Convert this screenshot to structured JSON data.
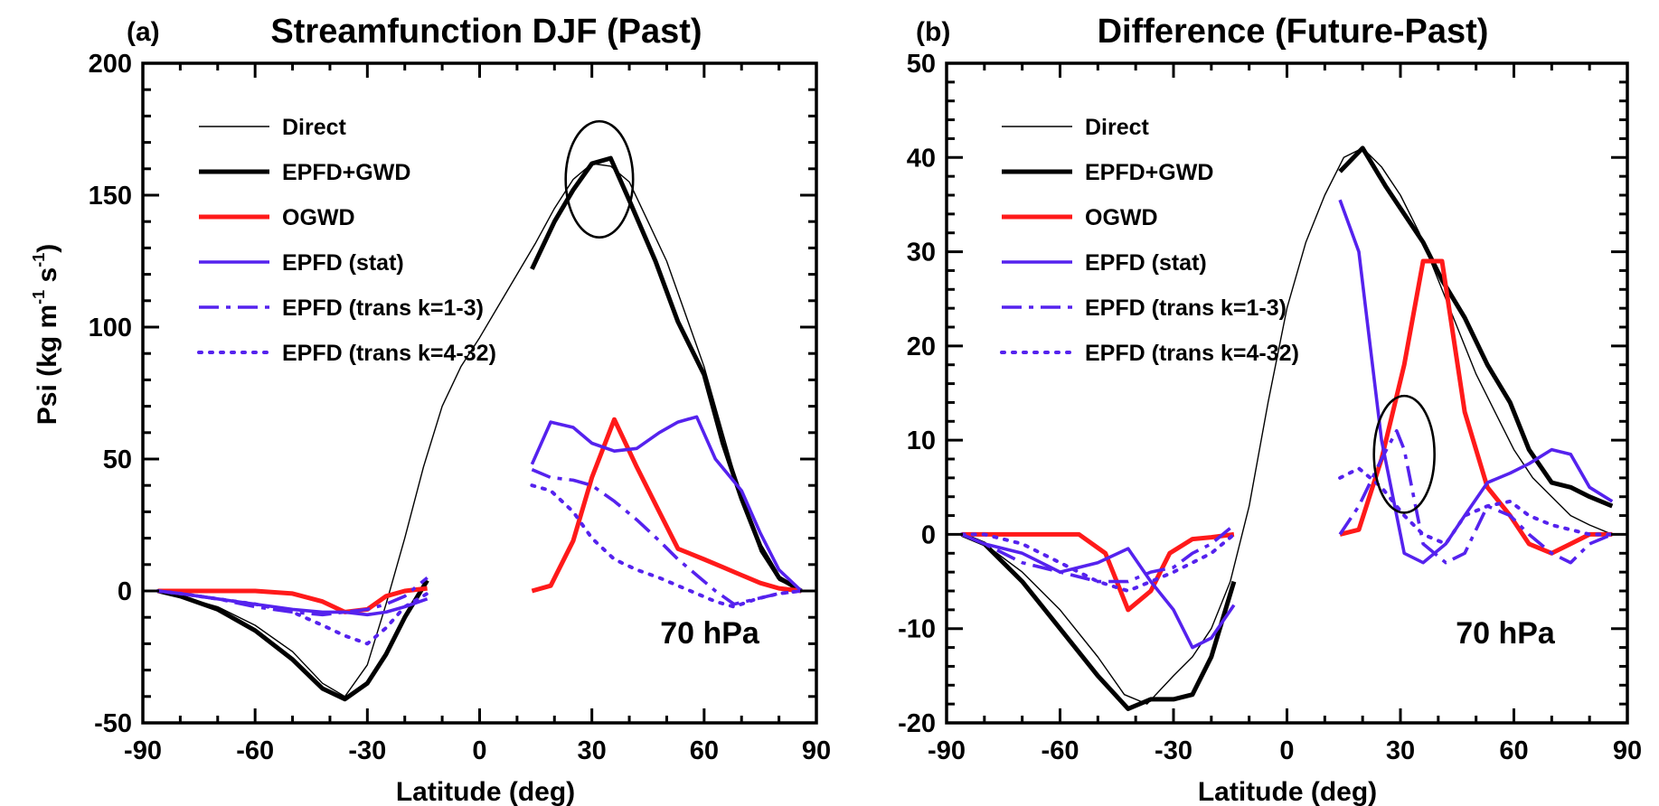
{
  "shared": {
    "ylabel_main": "Psi (kg m",
    "ylabel_sup1": "-1",
    "ylabel_mid": " s",
    "ylabel_sup2": "-1",
    "ylabel_end": ")",
    "xlabel": "Latitude (deg)"
  },
  "colors": {
    "direct": "#000000",
    "epfd_gwd": "#000000",
    "ogwd": "#ff1a1a",
    "epfd": "#5522ee",
    "ellipse": "#000000"
  },
  "chart_data": [
    {
      "type": "line",
      "panel_letter": "(a)",
      "title": "Streamfunction DJF (Past)",
      "xlabel": "Latitude (deg)",
      "ylabel": "Psi (kg m-1 s-1)",
      "xlim": [
        -90,
        90
      ],
      "ylim": [
        -50,
        200
      ],
      "xticks": [
        -90,
        -60,
        -30,
        0,
        30,
        60,
        90
      ],
      "yticks": [
        -50,
        0,
        50,
        100,
        150,
        200
      ],
      "annotation": "70 hPa",
      "legend_position": "top-left",
      "highlight_ellipse": {
        "lat": 32,
        "psi": 156,
        "lat_radius": 9,
        "psi_radius": 22
      },
      "series": [
        {
          "name": "Direct",
          "style": "thin",
          "color_key": "direct",
          "x": [
            -86,
            -80,
            -70,
            -60,
            -50,
            -42,
            -36,
            -30,
            -25,
            -20,
            -15,
            -10,
            -5,
            0,
            5,
            10,
            15,
            20,
            25,
            30,
            35,
            40,
            45,
            50,
            55,
            60,
            65,
            70,
            75,
            80,
            86
          ],
          "y": [
            0,
            -2,
            -6,
            -13,
            -23,
            -35,
            -40,
            -28,
            -5,
            20,
            47,
            70,
            85,
            96,
            108,
            120,
            132,
            145,
            156,
            162,
            161,
            155,
            140,
            125,
            105,
            85,
            60,
            35,
            15,
            4,
            0
          ]
        },
        {
          "name": "EPFD+GWD",
          "style": "thick",
          "color_key": "epfd_gwd",
          "segments": [
            {
              "x": [
                -86,
                -80,
                -70,
                -60,
                -50,
                -42,
                -36,
                -30,
                -25,
                -20,
                -14
              ],
              "y": [
                0,
                -2,
                -7,
                -15,
                -26,
                -37,
                -41,
                -35,
                -24,
                -10,
                4
              ]
            },
            {
              "x": [
                14,
                20,
                25,
                30,
                35,
                40,
                47,
                53,
                60,
                65,
                70,
                75,
                80,
                86
              ],
              "y": [
                122,
                140,
                152,
                162,
                164,
                148,
                125,
                102,
                82,
                56,
                35,
                17,
                5,
                0
              ]
            }
          ]
        },
        {
          "name": "OGWD",
          "style": "thick",
          "color_key": "ogwd",
          "segments": [
            {
              "x": [
                -86,
                -80,
                -70,
                -60,
                -50,
                -42,
                -36,
                -30,
                -25,
                -20,
                -14
              ],
              "y": [
                0,
                0,
                0,
                0,
                -1,
                -4,
                -8,
                -7,
                -2,
                0,
                1
              ]
            },
            {
              "x": [
                14,
                19,
                25,
                30,
                36,
                42,
                48,
                53,
                60,
                65,
                70,
                75,
                80,
                86
              ],
              "y": [
                0,
                2,
                19,
                43,
                65,
                47,
                30,
                16,
                12,
                9,
                6,
                3,
                1,
                0
              ]
            }
          ]
        },
        {
          "name": "EPFD (stat)",
          "style": "solid",
          "color_key": "epfd",
          "segments": [
            {
              "x": [
                -86,
                -80,
                -70,
                -60,
                -50,
                -42,
                -36,
                -30,
                -25,
                -20,
                -14
              ],
              "y": [
                0,
                -1,
                -3,
                -5,
                -7,
                -8,
                -8,
                -9,
                -8,
                -6,
                -3
              ]
            },
            {
              "x": [
                14,
                19,
                25,
                30,
                36,
                42,
                48,
                53,
                58,
                63,
                70,
                75,
                80,
                86
              ],
              "y": [
                48,
                64,
                62,
                56,
                53,
                54,
                60,
                64,
                66,
                50,
                38,
                22,
                8,
                0
              ]
            }
          ]
        },
        {
          "name": "EPFD (trans k=1-3)",
          "style": "dashdot",
          "color_key": "epfd",
          "segments": [
            {
              "x": [
                -86,
                -80,
                -70,
                -60,
                -50,
                -42,
                -36,
                -30,
                -25,
                -20,
                -14
              ],
              "y": [
                0,
                -1,
                -3,
                -6,
                -8,
                -9,
                -8,
                -7,
                -5,
                -2,
                5
              ]
            },
            {
              "x": [
                14,
                19,
                25,
                30,
                36,
                42,
                48,
                53,
                58,
                63,
                68,
                74,
                80,
                86
              ],
              "y": [
                46,
                43,
                42,
                40,
                34,
                27,
                19,
                12,
                6,
                0,
                -5,
                -3,
                -1,
                0
              ]
            }
          ]
        },
        {
          "name": "EPFD (trans k=4-32)",
          "style": "dotted",
          "color_key": "epfd",
          "segments": [
            {
              "x": [
                -86,
                -80,
                -70,
                -60,
                -50,
                -42,
                -36,
                -30,
                -25,
                -20,
                -14
              ],
              "y": [
                0,
                -1,
                -3,
                -5,
                -8,
                -13,
                -17,
                -20,
                -14,
                -6,
                -1
              ]
            },
            {
              "x": [
                14,
                19,
                25,
                30,
                36,
                42,
                48,
                53,
                58,
                63,
                68,
                74,
                80,
                86
              ],
              "y": [
                40,
                38,
                30,
                20,
                12,
                8,
                5,
                2,
                -1,
                -4,
                -6,
                -3,
                -1,
                0
              ]
            }
          ]
        }
      ]
    },
    {
      "type": "line",
      "panel_letter": "(b)",
      "title": "Difference (Future-Past)",
      "xlabel": "Latitude (deg)",
      "ylabel": "",
      "xlim": [
        -90,
        90
      ],
      "ylim": [
        -20,
        50
      ],
      "xticks": [
        -90,
        -60,
        -30,
        0,
        30,
        60,
        90
      ],
      "yticks": [
        -20,
        -10,
        0,
        10,
        20,
        30,
        40,
        50
      ],
      "annotation": "70 hPa",
      "legend_position": "top-left",
      "highlight_ellipse": {
        "lat": 31,
        "psi": 8.5,
        "lat_radius": 8,
        "psi_radius": 6.2
      },
      "series": [
        {
          "name": "Direct",
          "style": "thin",
          "color_key": "direct",
          "x": [
            -86,
            -80,
            -70,
            -60,
            -50,
            -43,
            -37,
            -30,
            -25,
            -20,
            -15,
            -10,
            -5,
            0,
            5,
            10,
            15,
            20,
            25,
            30,
            35,
            40,
            45,
            50,
            55,
            60,
            65,
            70,
            75,
            80,
            86
          ],
          "y": [
            0,
            -1,
            -4,
            -8,
            -13,
            -17,
            -18,
            -15,
            -13,
            -10,
            -5,
            3,
            14,
            24,
            31,
            36,
            40,
            41,
            39,
            36,
            32,
            27,
            22,
            17,
            13,
            9,
            6,
            4,
            2,
            1,
            0
          ]
        },
        {
          "name": "EPFD+GWD",
          "style": "thick",
          "color_key": "epfd_gwd",
          "segments": [
            {
              "x": [
                -86,
                -80,
                -70,
                -60,
                -50,
                -42,
                -36,
                -30,
                -25,
                -20,
                -14
              ],
              "y": [
                0,
                -1,
                -5,
                -10,
                -15,
                -18.5,
                -17.5,
                -17.5,
                -17,
                -13,
                -5
              ]
            },
            {
              "x": [
                14,
                20,
                26,
                31,
                36,
                41,
                47,
                53,
                59,
                64,
                70,
                75,
                80,
                86
              ],
              "y": [
                38.5,
                41,
                37,
                34,
                31,
                27,
                23,
                18,
                14,
                9,
                5.5,
                5,
                4,
                3
              ]
            }
          ]
        },
        {
          "name": "OGWD",
          "style": "thick",
          "color_key": "ogwd",
          "segments": [
            {
              "x": [
                -86,
                -80,
                -70,
                -60,
                -55,
                -48,
                -42,
                -36,
                -31,
                -25,
                -20,
                -14
              ],
              "y": [
                0,
                0,
                0,
                0,
                0,
                -2,
                -8,
                -6,
                -2,
                -0.5,
                -0.3,
                0
              ]
            },
            {
              "x": [
                14,
                19,
                25,
                31,
                36,
                41,
                47,
                53,
                59,
                64,
                70,
                75,
                80,
                86
              ],
              "y": [
                0,
                0.5,
                8,
                18,
                29,
                29,
                13,
                5,
                2,
                -1,
                -2,
                -1,
                0,
                0
              ]
            }
          ]
        },
        {
          "name": "EPFD (stat)",
          "style": "solid",
          "color_key": "epfd",
          "segments": [
            {
              "x": [
                -86,
                -80,
                -70,
                -60,
                -50,
                -42,
                -36,
                -30,
                -25,
                -20,
                -14
              ],
              "y": [
                0,
                -1,
                -2,
                -4,
                -3,
                -1.5,
                -5,
                -8,
                -12,
                -11,
                -7.5
              ]
            },
            {
              "x": [
                14,
                19,
                25,
                31,
                36,
                42,
                47,
                53,
                59,
                64,
                70,
                75,
                80,
                86
              ],
              "y": [
                35.5,
                30,
                10,
                -2,
                -3,
                -1,
                2,
                5.5,
                6.5,
                7.5,
                9,
                8.5,
                5,
                3.5
              ]
            }
          ]
        },
        {
          "name": "EPFD (trans k=1-3)",
          "style": "dashdot",
          "color_key": "epfd",
          "segments": [
            {
              "x": [
                -86,
                -80,
                -70,
                -60,
                -50,
                -42,
                -36,
                -30,
                -25,
                -20,
                -14
              ],
              "y": [
                0,
                -1,
                -3,
                -4,
                -5,
                -5,
                -4,
                -3.5,
                -2,
                -1,
                1
              ]
            },
            {
              "x": [
                14,
                19,
                25,
                29,
                31,
                36,
                42,
                47,
                53,
                59,
                64,
                70,
                75,
                80,
                86
              ],
              "y": [
                0,
                3,
                8,
                11,
                9,
                -1,
                -3,
                -2,
                3,
                2,
                0,
                -2,
                -3,
                -1,
                0
              ]
            }
          ]
        },
        {
          "name": "EPFD (trans k=4-32)",
          "style": "dotted",
          "color_key": "epfd",
          "segments": [
            {
              "x": [
                -86,
                -80,
                -70,
                -60,
                -50,
                -42,
                -36,
                -30,
                -25,
                -20,
                -14
              ],
              "y": [
                0,
                0,
                -1,
                -3,
                -5,
                -6,
                -5,
                -4,
                -3,
                -2,
                0
              ]
            },
            {
              "x": [
                14,
                19,
                25,
                31,
                36,
                42,
                47,
                53,
                59,
                64,
                70,
                75,
                80,
                86
              ],
              "y": [
                6,
                7,
                5,
                2,
                0,
                -1,
                2,
                3,
                3.5,
                2,
                1,
                0.5,
                0,
                0
              ]
            }
          ]
        }
      ]
    }
  ]
}
